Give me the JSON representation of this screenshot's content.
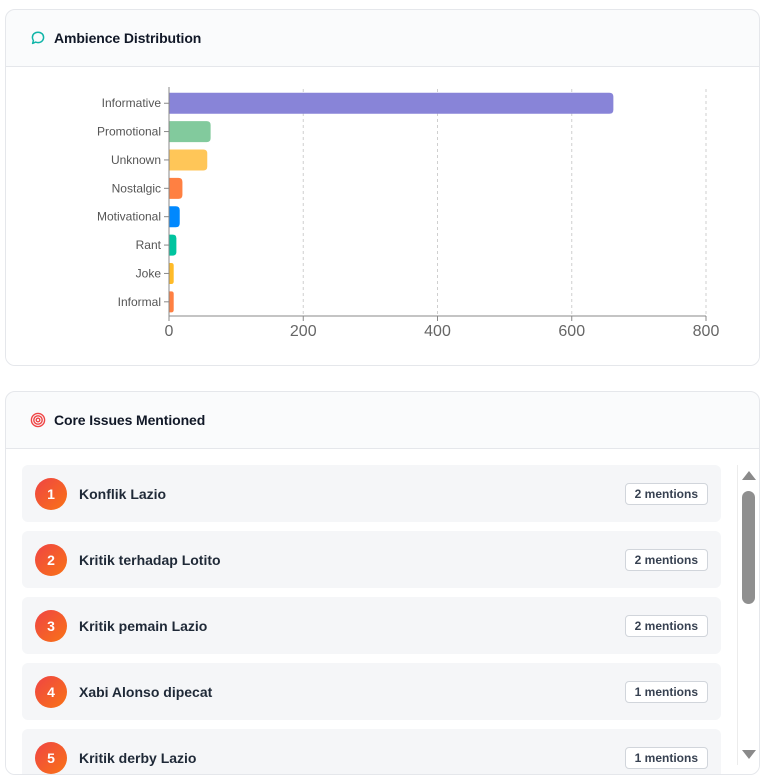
{
  "ambience": {
    "title": "Ambience Distribution",
    "icon": "chat-bubble-icon",
    "accent": "#10b5a8"
  },
  "chart_data": {
    "type": "bar",
    "orientation": "horizontal",
    "categories": [
      "Informative",
      "Promotional",
      "Unknown",
      "Nostalgic",
      "Motivational",
      "Rant",
      "Joke",
      "Informal"
    ],
    "values": [
      662,
      62,
      57,
      20,
      16,
      11,
      7,
      7
    ],
    "colors": [
      "#8884d8",
      "#82ca9d",
      "#ffc658",
      "#ff8042",
      "#0088fe",
      "#00c49f",
      "#ffbb28",
      "#ff8042"
    ],
    "xlim": [
      0,
      800
    ],
    "xticks": [
      0,
      200,
      400,
      600,
      800
    ],
    "grid": "vertical-dashed",
    "title": "",
    "xlabel": "",
    "ylabel": ""
  },
  "issues": {
    "title": "Core Issues Mentioned",
    "icon": "target-icon",
    "items": [
      {
        "rank": "1",
        "label": "Konflik Lazio",
        "mentions": "2 mentions"
      },
      {
        "rank": "2",
        "label": "Kritik terhadap Lotito",
        "mentions": "2 mentions"
      },
      {
        "rank": "3",
        "label": "Kritik pemain Lazio",
        "mentions": "2 mentions"
      },
      {
        "rank": "4",
        "label": "Xabi Alonso dipecat",
        "mentions": "1 mentions"
      },
      {
        "rank": "5",
        "label": "Kritik derby Lazio",
        "mentions": "1 mentions"
      }
    ]
  }
}
